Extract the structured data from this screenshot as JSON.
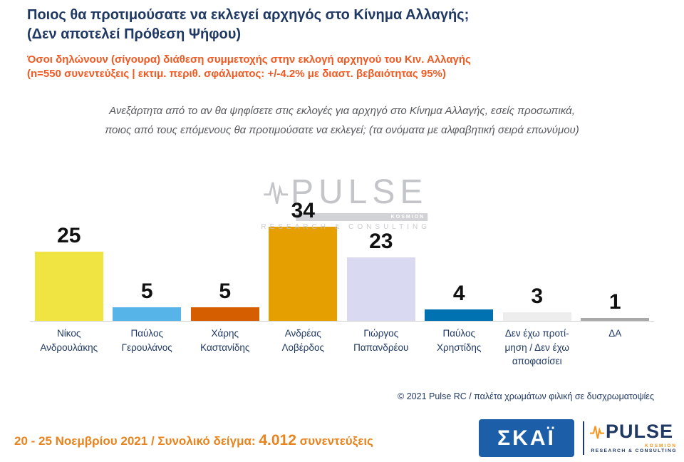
{
  "header": {
    "title_line1": "Ποιος θα προτιμούσατε να εκλεγεί αρχηγός στο Κίνημα Αλλαγής;",
    "title_line2": "(Δεν αποτελεί Πρόθεση Ψήφου)",
    "subtitle_line1": "Όσοι δηλώνουν (σίγουρα) διάθεση συμμετοχής στην εκλογή αρχηγού του Κιν. Αλλαγής",
    "subtitle_line2": "(n=550 συνεντεύξεις | εκτιμ. περιθ. σφάλματος: +/-4.2% με διαστ. βεβαιότητας 95%)"
  },
  "question": {
    "line1": "Ανεξάρτητα από το αν θα ψηφίσετε στις εκλογές για αρχηγό στο Κίνημα Αλλαγής, εσείς προσωπικά,",
    "line2": "ποιος από τους επόμενους θα προτιμούσατε να εκλεγεί; (τα ονόματα με αλφαβητική σειρά επωνύμου)"
  },
  "chart_data": {
    "type": "bar",
    "title": "Ποιος θα προτιμούσατε να εκλεγεί αρχηγός στο Κίνημα Αλλαγής; (Δεν αποτελεί Πρόθεση Ψήφου)",
    "categories": [
      "Νίκος Ανδρουλάκης",
      "Παύλος Γερουλάνος",
      "Χάρης Καστανίδης",
      "Ανδρέας Λοβέρδος",
      "Γιώργος Παπανδρέου",
      "Παύλος Χρηστίδης",
      "Δεν έχω προτίμηση / Δεν έχω αποφασίσει",
      "ΔΑ"
    ],
    "category_label_lines": [
      [
        "Νίκος",
        "Ανδρουλάκης"
      ],
      [
        "Παύλος",
        "Γερουλάνος"
      ],
      [
        "Χάρης",
        "Καστανίδης"
      ],
      [
        "Ανδρέας",
        "Λοβέρδος"
      ],
      [
        "Γιώργος",
        "Παπανδρέου"
      ],
      [
        "Παύλος",
        "Χρηστίδης"
      ],
      [
        "Δεν έχω προτί-",
        "μηση / Δεν έχω",
        "αποφασίσει"
      ],
      [
        "ΔΑ"
      ]
    ],
    "values": [
      25,
      5,
      5,
      34,
      23,
      4,
      3,
      1
    ],
    "colors": [
      "#F0E442",
      "#56B4E9",
      "#D55E00",
      "#E69F00",
      "#D9D9F2",
      "#0072B2",
      "#EDEDED",
      "#A9A9A9"
    ],
    "value_labels_shown": true,
    "xlabel": "",
    "ylabel": "",
    "ylim": [
      0,
      40
    ],
    "gridlines": false,
    "legend": "none",
    "note": "παλέτα χρωμάτων φιλική σε δυσχρωματοψίες"
  },
  "watermark": {
    "name": "PULSE",
    "tag": "KOSMION",
    "sub": "RESEARCH & CONSULTING"
  },
  "credit": "© 2021 Pulse RC   /   παλέτα χρωμάτων φιλική σε δυσχρωματοψίες",
  "footer": {
    "date_sample": "20 - 25  Νοεμβρίου 2021  /  Συνολικό δείγμα:",
    "sample_value": "4.012",
    "sample_unit": "συνεντεύξεις"
  },
  "logos": {
    "skai": "ΣΚΑΪ",
    "pulse": "PULSE",
    "pulse_tag": "KOSMION",
    "pulse_sub": "RESEARCH & CONSULTING"
  },
  "colors": {
    "title_navy": "#1F3864",
    "subtitle_orange": "#F15922",
    "footer_orange": "#E8831D",
    "skai_blue": "#1C5FA8",
    "pulse_navy": "#1F3864",
    "pulse_orange": "#F7941D",
    "value_label": "#111111"
  }
}
